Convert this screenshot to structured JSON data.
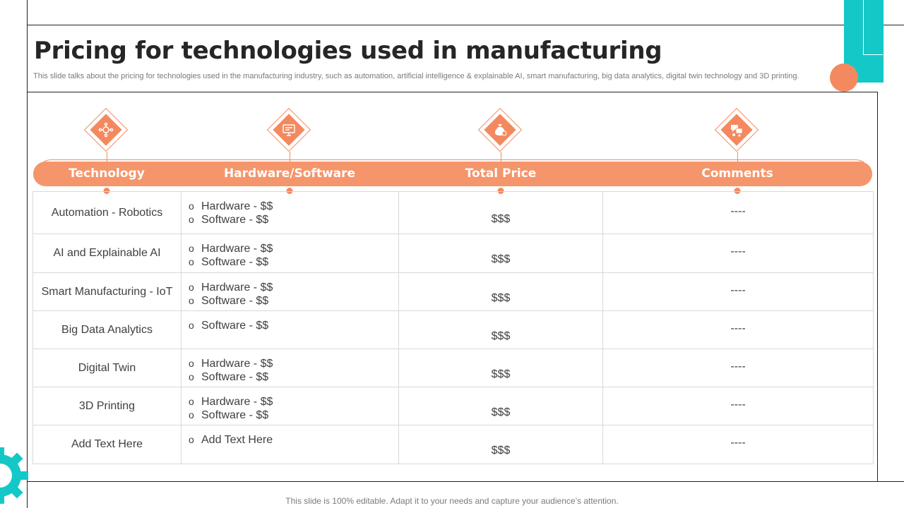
{
  "slide": {
    "title": "Pricing for technologies used in manufacturing",
    "subtitle": "This slide talks about the pricing for technologies used in the manufacturing industry, such as automation, artificial intelligence & explainable AI, smart manufacturing, big data analytics, digital twin technology and 3D printing.",
    "footer": "This slide is 100% editable. Adapt it to your needs and capture your audience’s attention."
  },
  "colors": {
    "accent": "#f4895f",
    "band": "#f5956b",
    "teal": "#14c8c8"
  },
  "icons": [
    "network-icon",
    "computer-icon",
    "money-bag-icon",
    "chat-icon"
  ],
  "columns": [
    "Technology",
    "Hardware/Software",
    "Total Price",
    "Comments"
  ],
  "rows": [
    {
      "technology": "Automation - Robotics",
      "items": [
        "Hardware - $$",
        "Software - $$"
      ],
      "price": "$$$",
      "comment": "----"
    },
    {
      "technology": "AI and Explainable AI",
      "items": [
        "Hardware - $$",
        "Software - $$"
      ],
      "price": "$$$",
      "comment": "----"
    },
    {
      "technology": "Smart Manufacturing  - IoT",
      "items": [
        "Hardware - $$",
        "Software - $$"
      ],
      "price": "$$$",
      "comment": "----"
    },
    {
      "technology": "Big Data Analytics",
      "items": [
        "Software - $$"
      ],
      "price": "$$$",
      "comment": "----"
    },
    {
      "technology": "Digital Twin",
      "items": [
        "Hardware - $$",
        "Software - $$"
      ],
      "price": "$$$",
      "comment": "----"
    },
    {
      "technology": "3D Printing",
      "items": [
        "Hardware - $$",
        "Software - $$"
      ],
      "price": "$$$",
      "comment": "----"
    },
    {
      "technology": "Add Text Here",
      "items": [
        "Add Text Here"
      ],
      "price": "$$$",
      "comment": "----"
    }
  ]
}
